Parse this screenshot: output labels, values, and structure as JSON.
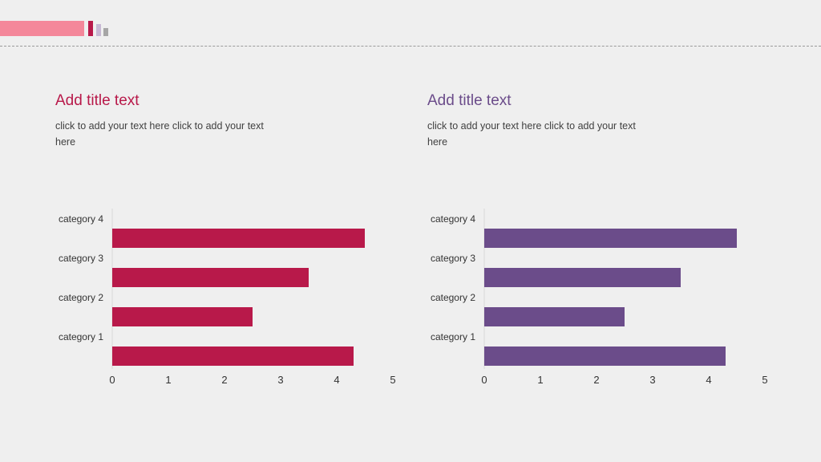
{
  "panels": [
    {
      "title": "Add title text",
      "body": "click to add your text here click to add your text here",
      "title_color": "#b8194a"
    },
    {
      "title": "Add title text",
      "body": "click to add your text here click to add your text here",
      "title_color": "#6b4c8a"
    }
  ],
  "chart_data": [
    {
      "type": "bar",
      "orientation": "horizontal",
      "categories": [
        "category 1",
        "category 2",
        "category 3",
        "category 4"
      ],
      "values": [
        4.3,
        2.5,
        3.5,
        4.5
      ],
      "xlim": [
        0,
        5
      ],
      "xticks": [
        "0",
        "1",
        "2",
        "3",
        "4",
        "5"
      ],
      "color": "#b8194a",
      "grid": false
    },
    {
      "type": "bar",
      "orientation": "horizontal",
      "categories": [
        "category 1",
        "category 2",
        "category 3",
        "category 4"
      ],
      "values": [
        4.3,
        2.5,
        3.5,
        4.5
      ],
      "xlim": [
        0,
        5
      ],
      "xticks": [
        "0",
        "1",
        "2",
        "3",
        "4",
        "5"
      ],
      "color": "#6b4c8a",
      "grid": false
    }
  ]
}
